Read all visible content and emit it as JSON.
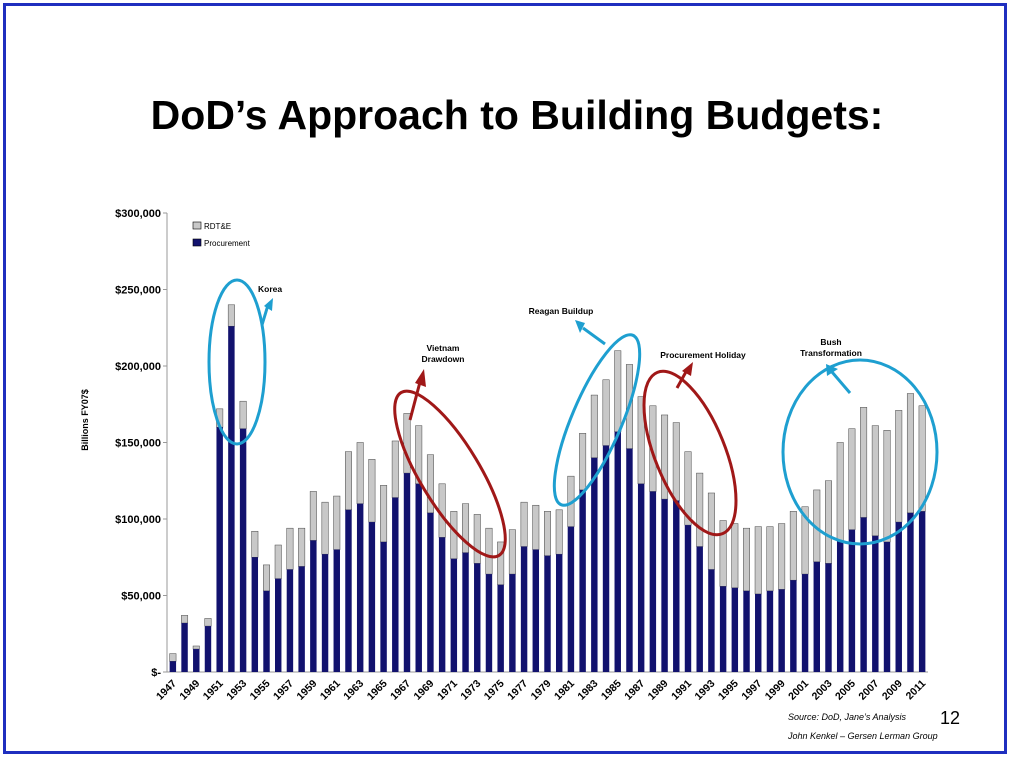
{
  "slide": {
    "title": "DoD’s Approach to Building Budgets:",
    "slide_number": "12",
    "source": "Source: DoD, Jane’s Analysis",
    "author": "John Kenkel – Gersen Lerman Group"
  },
  "colors": {
    "procurement": "#12126e",
    "rdte": "#c8c8c8",
    "blue_ellipse": "#1e9fd0",
    "red_ellipse": "#a01818",
    "frame": "#1f2fbf"
  },
  "chart_data": {
    "type": "bar",
    "stacked": true,
    "ylabel": "Billions  FY07$",
    "ylim": [
      0,
      300000
    ],
    "ytick_values": [
      0,
      50000,
      100000,
      150000,
      200000,
      250000,
      300000
    ],
    "ytick_labels": [
      "$-",
      "$50,000",
      "$100,000",
      "$150,000",
      "$200,000",
      "$250,000",
      "$300,000"
    ],
    "x_tick_labels": [
      "1947",
      "1949",
      "1951",
      "1953",
      "1955",
      "1957",
      "1959",
      "1961",
      "1963",
      "1965",
      "1967",
      "1969",
      "1971",
      "1973",
      "1975",
      "1977",
      "1979",
      "1981",
      "1983",
      "1985",
      "1987",
      "1989",
      "1991",
      "1993",
      "1995",
      "1997",
      "1999",
      "2001",
      "2003",
      "2005",
      "2007",
      "2009",
      "2011"
    ],
    "categories": [
      "1947",
      "1948",
      "1949",
      "1950",
      "1951",
      "1952",
      "1953",
      "1954",
      "1955",
      "1956",
      "1957",
      "1958",
      "1959",
      "1960",
      "1961",
      "1962",
      "1963",
      "1964",
      "1965",
      "1966",
      "1967",
      "1968",
      "1969",
      "1970",
      "1971",
      "1972",
      "1973",
      "1974",
      "1975",
      "1976",
      "1977",
      "1978",
      "1979",
      "1980",
      "1981",
      "1982",
      "1983",
      "1984",
      "1985",
      "1986",
      "1987",
      "1988",
      "1989",
      "1990",
      "1991",
      "1992",
      "1993",
      "1994",
      "1995",
      "1996",
      "1997",
      "1998",
      "1999",
      "2000",
      "2001",
      "2002",
      "2003",
      "2004",
      "2005",
      "2006",
      "2007",
      "2008",
      "2009",
      "2010",
      "2011"
    ],
    "legend_position": "top-left",
    "series": [
      {
        "name": "Procurement",
        "values": [
          7000,
          32000,
          15000,
          30000,
          160000,
          226000,
          159000,
          75000,
          53000,
          61000,
          67000,
          69000,
          86000,
          77000,
          80000,
          106000,
          110000,
          98000,
          85000,
          114000,
          130000,
          123000,
          104000,
          88000,
          74000,
          78000,
          71000,
          64000,
          57000,
          64000,
          82000,
          80000,
          76000,
          77000,
          95000,
          119000,
          140000,
          148000,
          157000,
          146000,
          123000,
          118000,
          113000,
          112000,
          96000,
          82000,
          67000,
          56000,
          55000,
          53000,
          51000,
          53000,
          54000,
          60000,
          64000,
          72000,
          71000,
          86000,
          93000,
          101000,
          89000,
          85000,
          98000,
          104000,
          105000
        ]
      },
      {
        "name": "RDT&E",
        "values": [
          5000,
          5000,
          2000,
          5000,
          12000,
          14000,
          18000,
          17000,
          17000,
          22000,
          27000,
          25000,
          32000,
          34000,
          35000,
          38000,
          40000,
          41000,
          37000,
          37000,
          39000,
          38000,
          38000,
          35000,
          31000,
          32000,
          32000,
          30000,
          28000,
          29000,
          29000,
          29000,
          29000,
          29000,
          33000,
          37000,
          41000,
          43000,
          53000,
          55000,
          57000,
          56000,
          55000,
          51000,
          48000,
          48000,
          50000,
          43000,
          42000,
          41000,
          44000,
          42000,
          43000,
          45000,
          44000,
          47000,
          54000,
          64000,
          66000,
          72000,
          72000,
          73000,
          73000,
          78000,
          69000
        ]
      }
    ],
    "annotations": [
      "Korea",
      "Vietnam\nDrawdown",
      "Reagan Buildup",
      "Procurement Holiday",
      "Bush\nTransformation"
    ]
  }
}
